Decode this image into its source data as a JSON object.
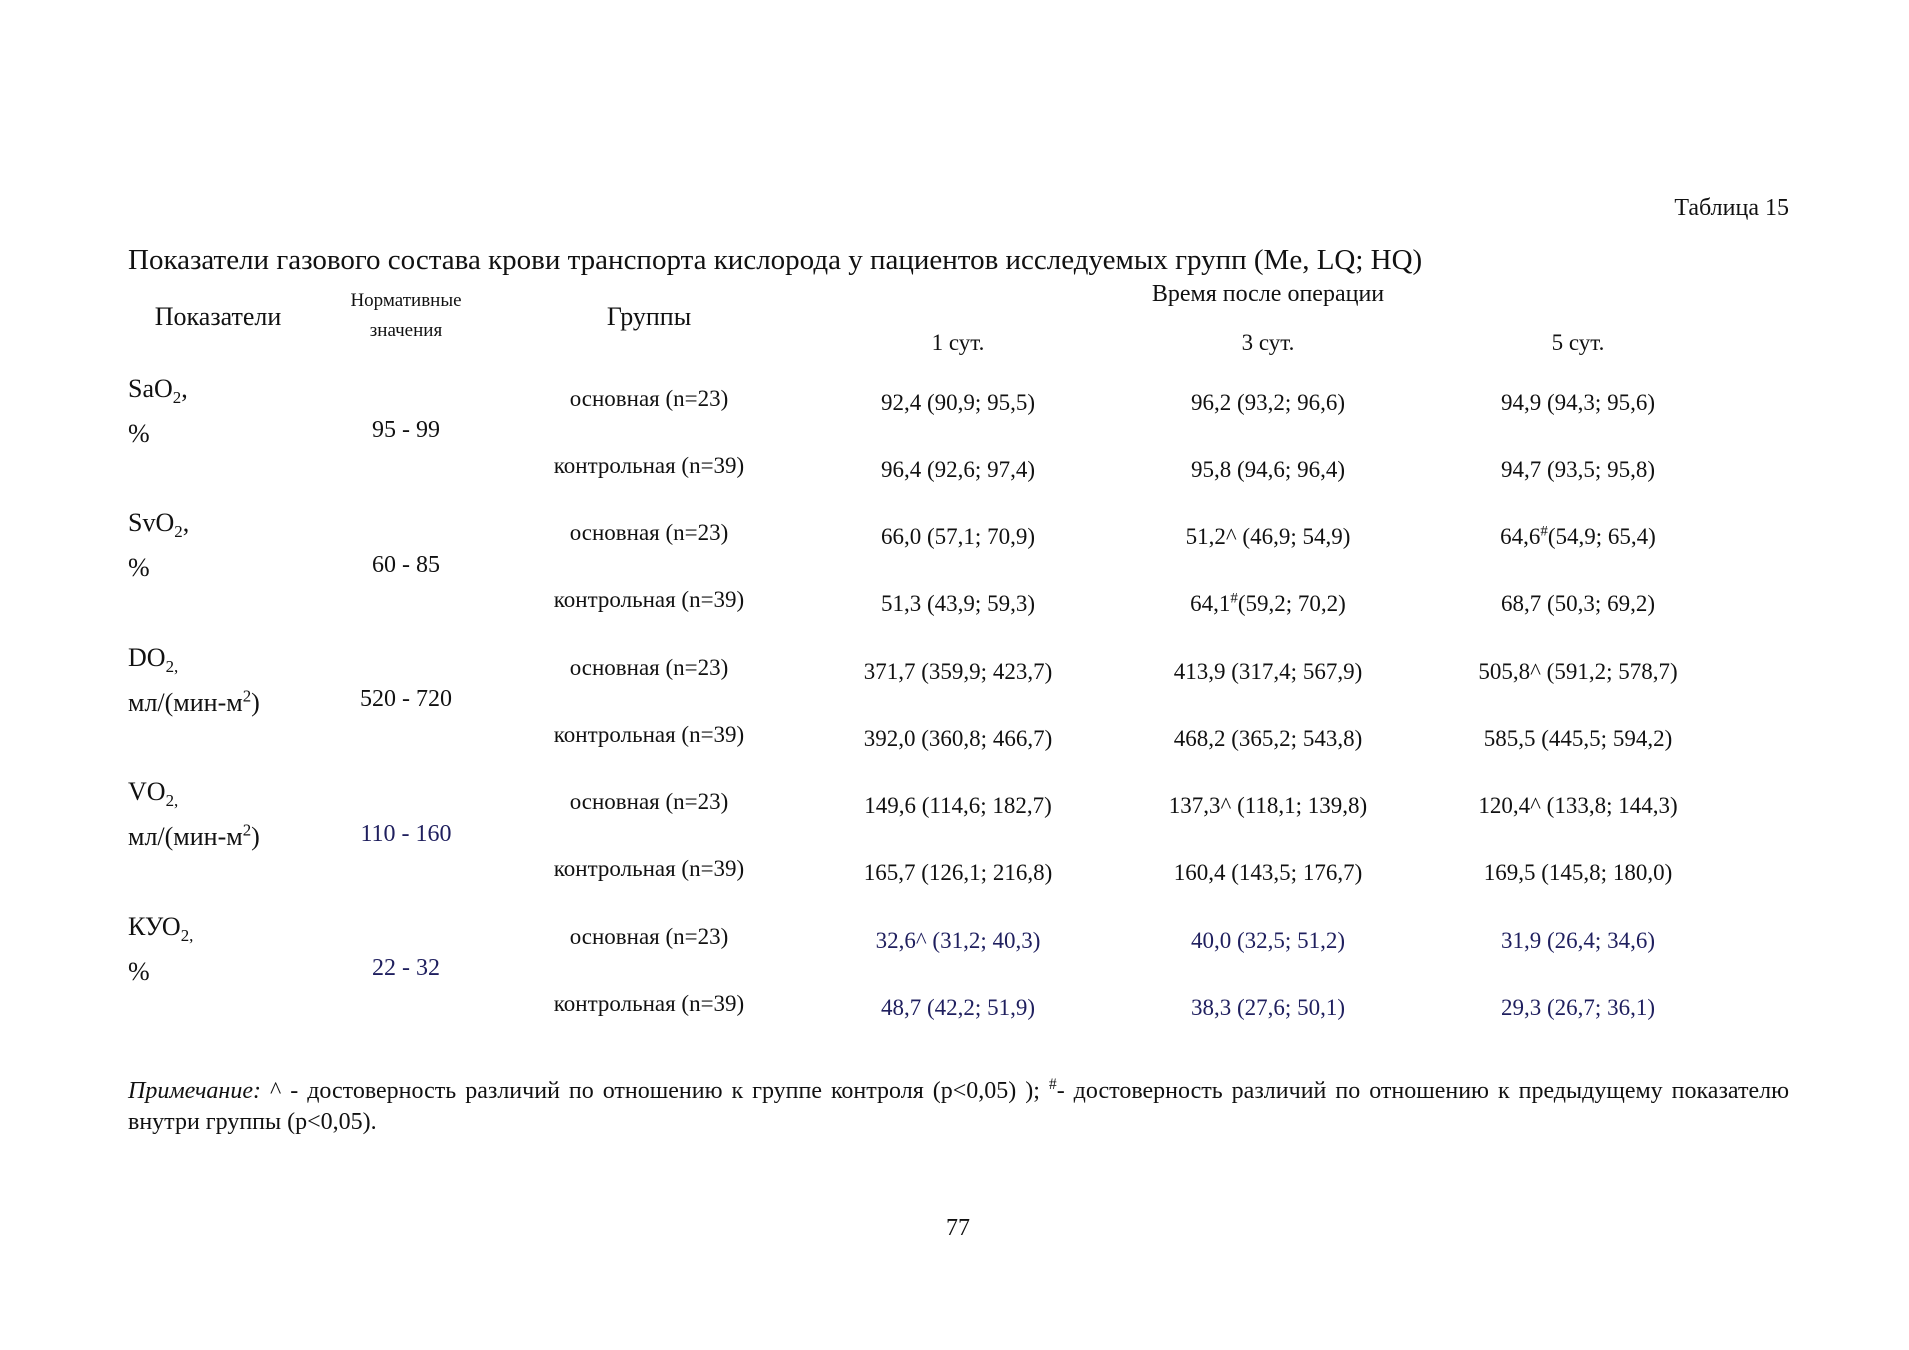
{
  "table_label": "Таблица 15",
  "caption": "Показатели газового состава крови транспорта кислорода у пациентов исследуемых групп (Me, LQ; HQ)",
  "header": {
    "indicator": "Показатели",
    "norm": "Нормативные значения",
    "groups": "Группы",
    "time": "Время после операции",
    "days": [
      "1 сут.",
      "3 сут.",
      "5 сут."
    ]
  },
  "rows": [
    {
      "name": [
        "SaO",
        {
          "sub": "2"
        },
        ","
      ],
      "unit": "%",
      "norm": "95 - 99",
      "groups": [
        {
          "group": "основная (n=23)",
          "values": [
            "92,4 (90,9; 95,5)",
            "96,2 (93,2; 96,6)",
            "94,9 (94,3; 95,6)"
          ]
        },
        {
          "group": "контрольная (n=39)",
          "values": [
            "96,4 (92,6; 97,4)",
            "95,8 (94,6; 96,4)",
            "94,7 (93,5; 95,8)"
          ]
        }
      ]
    },
    {
      "name": [
        "SvO",
        {
          "sub": "2"
        },
        ","
      ],
      "unit": "%",
      "norm": "60 - 85",
      "groups": [
        {
          "group": "основная (n=23)",
          "values": [
            "66,0 (57,1; 70,9)",
            "51,2^ (46,9; 54,9)",
            [
              "64,6",
              {
                "sup": "#"
              },
              "(54,9; 65,4)"
            ]
          ]
        },
        {
          "group": "контрольная (n=39)",
          "values": [
            "51,3 (43,9; 59,3)",
            [
              "64,1",
              {
                "sup": "#"
              },
              "(59,2; 70,2)"
            ],
            "68,7 (50,3; 69,2)"
          ]
        }
      ]
    },
    {
      "name": [
        "DO",
        {
          "sub": "2,"
        }
      ],
      "unit": [
        "мл/(мин-м",
        {
          "sup": "2"
        },
        ")"
      ],
      "norm": "520 - 720",
      "groups": [
        {
          "group": "основная (n=23)",
          "values": [
            "371,7 (359,9; 423,7)",
            "413,9 (317,4; 567,9)",
            "505,8^ (591,2; 578,7)"
          ]
        },
        {
          "group": "контрольная (n=39)",
          "values": [
            "392,0 (360,8; 466,7)",
            "468,2 (365,2; 543,8)",
            "585,5 (445,5; 594,2)"
          ]
        }
      ]
    },
    {
      "name": [
        "VO",
        {
          "sub": "2,"
        }
      ],
      "unit": [
        "мл/(мин-м",
        {
          "sup": "2"
        },
        ")"
      ],
      "norm": "110 - 160",
      "norm_color": "#1f1f5e",
      "groups": [
        {
          "group": "основная (n=23)",
          "values": [
            "149,6 (114,6; 182,7)",
            "137,3^ (118,1; 139,8)",
            "120,4^ (133,8; 144,3)"
          ]
        },
        {
          "group": "контрольная (n=39)",
          "values": [
            "165,7 (126,1; 216,8)",
            "160,4 (143,5; 176,7)",
            "169,5 (145,8; 180,0)"
          ]
        }
      ]
    },
    {
      "name": [
        "КУО",
        {
          "sub": "2,"
        }
      ],
      "unit": "%",
      "norm": "22 - 32",
      "norm_color": "#1f1f5e",
      "values_color": "#1f1f5e",
      "groups": [
        {
          "group": "основная (n=23)",
          "values": [
            "32,6^ (31,2; 40,3)",
            "40,0 (32,5; 51,2)",
            "31,9 (26,4; 34,6)"
          ]
        },
        {
          "group": "контрольная (n=39)",
          "values": [
            "48,7 (42,2; 51,9)",
            "38,3 (27,6; 50,1)",
            "29,3 (26,7; 36,1)"
          ]
        }
      ]
    }
  ],
  "note": {
    "label": "Примечание:",
    "text1": " ^ - достоверность различий по отношению к группе контроля (p<0,05) ); ",
    "sup": "#",
    "text2": "- достоверность различий по отношению к предыдущему показателю внутри группы (p<0,05)."
  },
  "page_number": "77"
}
